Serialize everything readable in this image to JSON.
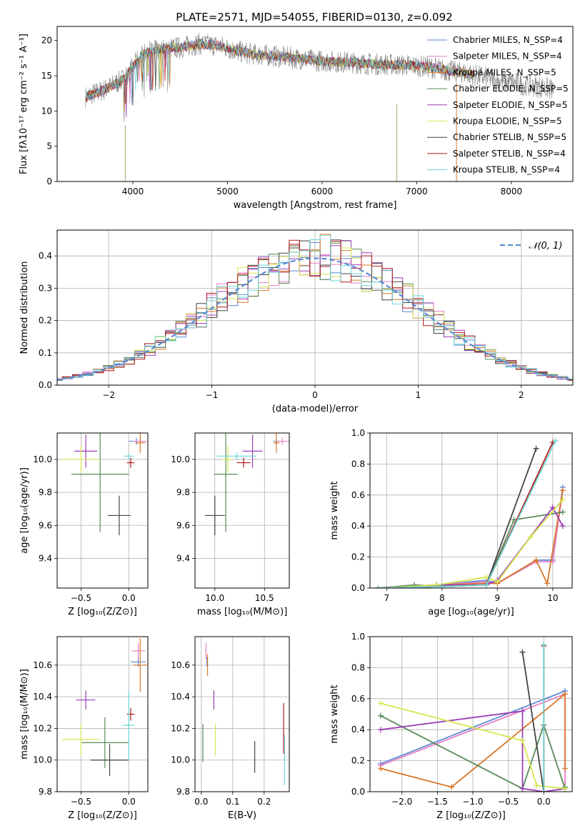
{
  "chart_data": [
    {
      "id": "spectrum",
      "type": "line",
      "title": "PLATE=2571, MJD=54055, FIBERID=0130, z=0.092",
      "xlabel": "wavelength [Angstrom, rest frame]",
      "ylabel": "Flux [fλ10⁻¹⁷ erg cm⁻² s⁻¹ A⁻¹]",
      "xlim": [
        3200,
        8650
      ],
      "ylim": [
        0,
        22
      ],
      "xticks": [
        4000,
        5000,
        6000,
        7000,
        8000
      ],
      "yticks": [
        0,
        5,
        10,
        15,
        20
      ],
      "grid": false,
      "legend_position": "top-right",
      "data_envelope": {
        "x": [
          3500,
          3700,
          3900,
          4100,
          4300,
          4500,
          4700,
          4900,
          5100,
          5300,
          5500,
          5700,
          5900,
          6100,
          6300,
          6500,
          6700,
          6900,
          7100,
          7300,
          7500,
          7700,
          7900,
          8100,
          8300,
          8450
        ],
        "y": [
          12.0,
          13.0,
          14.5,
          18.0,
          18.8,
          19.0,
          19.5,
          19.3,
          18.5,
          18.0,
          17.8,
          17.5,
          17.2,
          17.0,
          16.9,
          16.7,
          16.6,
          16.5,
          16.3,
          15.8,
          15.4,
          14.8,
          14.2,
          13.8,
          13.4,
          13.0
        ]
      },
      "series": [
        {
          "name": "Chabrier MILES, N_SSP=4",
          "color": "#5b8ad6"
        },
        {
          "name": "Salpeter MILES, N_SSP=4",
          "color": "#e87fc6"
        },
        {
          "name": "Kroupa MILES, N_SSP=5",
          "color": "#d9772a"
        },
        {
          "name": "Chabrier ELODIE, N_SSP=5",
          "color": "#5a8a5a"
        },
        {
          "name": "Salpeter ELODIE, N_SSP=5",
          "color": "#9b3fb5"
        },
        {
          "name": "Kroupa ELODIE, N_SSP=5",
          "color": "#d6e64e"
        },
        {
          "name": "Chabrier STELIB, N_SSP=5",
          "color": "#444444"
        },
        {
          "name": "Salpeter STELIB, N_SSP=4",
          "color": "#b01c1c"
        },
        {
          "name": "Kroupa STELIB, N_SSP=4",
          "color": "#6fd6d6"
        }
      ]
    },
    {
      "id": "residuals",
      "type": "bar",
      "xlabel": "(data-model)/error",
      "ylabel": "Normed distribution",
      "xlim": [
        -2.5,
        2.5
      ],
      "ylim": [
        0,
        0.48
      ],
      "xticks": [
        -2,
        -1,
        0,
        1,
        2
      ],
      "yticks": [
        0.0,
        0.1,
        0.2,
        0.3,
        0.4
      ],
      "grid": true,
      "legend_position": "top-right",
      "reference": {
        "name": "𝒩(0, 1)",
        "color": "#5b8ad6"
      },
      "bin_width": 0.1
    },
    {
      "id": "age_vs_Z",
      "type": "scatter",
      "xlabel": "Z [log₁₀(Z/Z⊙)]",
      "ylabel": "age  [log₁₀(age/yr)]",
      "xlim": [
        -0.75,
        0.2
      ],
      "ylim": [
        9.22,
        10.16
      ],
      "xticks": [
        -0.5,
        0.0
      ],
      "yticks": [
        9.4,
        9.6,
        9.8,
        10.0
      ],
      "grid": true,
      "points": [
        {
          "c": "#5b8ad6",
          "x": 0.08,
          "y": 10.11,
          "xe": 0.08,
          "ye": 0.02
        },
        {
          "c": "#e87fc6",
          "x": 0.12,
          "y": 10.11,
          "xe": 0.07,
          "ye": 0.02
        },
        {
          "c": "#d9772a",
          "x": 0.12,
          "y": 10.1,
          "xe": 0.05,
          "ye": 0.06
        },
        {
          "c": "#5a8a5a",
          "x": -0.3,
          "y": 9.91,
          "xe": 0.3,
          "ye": 0.35
        },
        {
          "c": "#9b3fb5",
          "x": -0.45,
          "y": 10.05,
          "xe": 0.12,
          "ye": 0.1
        },
        {
          "c": "#d6e64e",
          "x": -0.5,
          "y": 10.0,
          "xe": 0.2,
          "ye": 0.08
        },
        {
          "c": "#444444",
          "x": -0.1,
          "y": 9.66,
          "xe": 0.12,
          "ye": 0.12
        },
        {
          "c": "#b01c1c",
          "x": 0.02,
          "y": 9.98,
          "xe": 0.04,
          "ye": 0.03
        },
        {
          "c": "#6fd6d6",
          "x": 0.0,
          "y": 10.02,
          "xe": 0.05,
          "ye": 0.02
        }
      ]
    },
    {
      "id": "age_vs_mass",
      "type": "scatter",
      "xlabel": "mass [log₁₀(M/M⊙)]",
      "ylabel": "",
      "xlim": [
        9.8,
        10.75
      ],
      "ylim": [
        9.22,
        10.16
      ],
      "xticks": [
        10.0,
        10.5
      ],
      "yticks": [
        9.4,
        9.6,
        9.8,
        10.0
      ],
      "grid": true,
      "points": [
        {
          "c": "#5b8ad6",
          "x": 10.62,
          "y": 10.11,
          "xe": 0.03,
          "ye": 0.02
        },
        {
          "c": "#e87fc6",
          "x": 10.68,
          "y": 10.11,
          "xe": 0.07,
          "ye": 0.02
        },
        {
          "c": "#d9772a",
          "x": 10.62,
          "y": 10.1,
          "xe": 0.03,
          "ye": 0.06
        },
        {
          "c": "#5a8a5a",
          "x": 10.11,
          "y": 9.91,
          "xe": 0.12,
          "ye": 0.35
        },
        {
          "c": "#9b3fb5",
          "x": 10.38,
          "y": 10.05,
          "xe": 0.1,
          "ye": 0.1
        },
        {
          "c": "#d6e64e",
          "x": 10.13,
          "y": 10.0,
          "xe": 0.05,
          "ye": 0.08
        },
        {
          "c": "#444444",
          "x": 10.0,
          "y": 9.66,
          "xe": 0.1,
          "ye": 0.12
        },
        {
          "c": "#b01c1c",
          "x": 10.29,
          "y": 9.98,
          "xe": 0.07,
          "ye": 0.03
        },
        {
          "c": "#6fd6d6",
          "x": 10.22,
          "y": 10.02,
          "xe": 0.2,
          "ye": 0.02
        }
      ]
    },
    {
      "id": "weight_vs_age",
      "type": "line",
      "xlabel": "age  [log₁₀(age/yr)]",
      "ylabel": "mass weight",
      "xlim": [
        6.7,
        10.35
      ],
      "ylim": [
        0,
        1.0
      ],
      "xticks": [
        7,
        8,
        9,
        10
      ],
      "yticks": [
        0.0,
        0.2,
        0.4,
        0.6,
        0.8,
        1.0
      ],
      "grid": true,
      "series": [
        {
          "c": "#5b8ad6",
          "x": [
            6.85,
            7.9,
            8.8,
            9.0,
            9.7,
            10.0,
            10.18
          ],
          "y": [
            0.0,
            0.02,
            0.05,
            0.03,
            0.18,
            0.18,
            0.65
          ]
        },
        {
          "c": "#e87fc6",
          "x": [
            6.85,
            7.9,
            8.8,
            9.0,
            9.7,
            10.0,
            10.18
          ],
          "y": [
            0.0,
            0.02,
            0.04,
            0.03,
            0.17,
            0.17,
            0.63
          ]
        },
        {
          "c": "#d9772a",
          "x": [
            6.85,
            7.9,
            8.8,
            9.0,
            9.7,
            9.9,
            10.18
          ],
          "y": [
            0.0,
            0.02,
            0.03,
            0.03,
            0.18,
            0.03,
            0.63
          ]
        },
        {
          "c": "#5a8a5a",
          "x": [
            6.85,
            7.5,
            8.0,
            8.8,
            9.3,
            10.18
          ],
          "y": [
            0.0,
            0.02,
            0.01,
            0.02,
            0.44,
            0.49
          ]
        },
        {
          "c": "#9b3fb5",
          "x": [
            6.85,
            7.9,
            8.8,
            9.0,
            10.0,
            10.18
          ],
          "y": [
            0.0,
            0.02,
            0.02,
            0.05,
            0.52,
            0.4
          ]
        },
        {
          "c": "#d6e64e",
          "x": [
            6.85,
            7.9,
            8.8,
            9.0,
            9.6,
            10.18
          ],
          "y": [
            0.0,
            0.02,
            0.07,
            0.04,
            0.33,
            0.57
          ]
        },
        {
          "c": "#444444",
          "x": [
            6.85,
            8.0,
            8.8,
            9.7
          ],
          "y": [
            0.0,
            0.01,
            0.02,
            0.9
          ]
        },
        {
          "c": "#b01c1c",
          "x": [
            6.85,
            8.0,
            8.8,
            10.0
          ],
          "y": [
            0.0,
            0.01,
            0.02,
            0.94
          ]
        },
        {
          "c": "#6fd6d6",
          "x": [
            6.85,
            8.0,
            8.8,
            10.05
          ],
          "y": [
            0.0,
            0.01,
            0.02,
            0.95
          ]
        }
      ]
    },
    {
      "id": "mass_vs_Z",
      "type": "scatter",
      "xlabel": "Z [log₁₀(Z/Z⊙)]",
      "ylabel": "mass [log₁₀(M/M⊙)]",
      "xlim": [
        -0.75,
        0.2
      ],
      "ylim": [
        9.8,
        10.78
      ],
      "xticks": [
        -0.5,
        0.0
      ],
      "yticks": [
        9.8,
        10.0,
        10.2,
        10.4,
        10.6
      ],
      "grid": true,
      "points": [
        {
          "c": "#5b8ad6",
          "x": 0.1,
          "y": 10.62,
          "xe": 0.08,
          "ye": 0.03
        },
        {
          "c": "#e87fc6",
          "x": 0.1,
          "y": 10.69,
          "xe": 0.07,
          "ye": 0.05
        },
        {
          "c": "#d9772a",
          "x": 0.12,
          "y": 10.6,
          "xe": 0.07,
          "ye": 0.17
        },
        {
          "c": "#5a8a5a",
          "x": -0.25,
          "y": 10.11,
          "xe": 0.25,
          "ye": 0.16
        },
        {
          "c": "#9b3fb5",
          "x": -0.45,
          "y": 10.38,
          "xe": 0.1,
          "ye": 0.06
        },
        {
          "c": "#d6e64e",
          "x": -0.5,
          "y": 10.13,
          "xe": 0.2,
          "ye": 0.1
        },
        {
          "c": "#444444",
          "x": -0.2,
          "y": 10.0,
          "xe": 0.2,
          "ye": 0.1
        },
        {
          "c": "#b01c1c",
          "x": 0.02,
          "y": 10.29,
          "xe": 0.04,
          "ye": 0.04
        },
        {
          "c": "#6fd6d6",
          "x": 0.0,
          "y": 10.22,
          "xe": 0.06,
          "ye": 0.22
        }
      ]
    },
    {
      "id": "mass_vs_EBV",
      "type": "scatter",
      "xlabel": "E(B-V)",
      "ylabel": "",
      "xlim": [
        -0.02,
        0.28
      ],
      "ylim": [
        9.8,
        10.78
      ],
      "xticks": [
        0.0,
        0.1,
        0.2
      ],
      "yticks": [
        9.8,
        10.0,
        10.2,
        10.4,
        10.6
      ],
      "grid": true,
      "points": [
        {
          "c": "#5b8ad6",
          "x": 0.018,
          "y": 10.62,
          "xe": 0,
          "ye": 0.03
        },
        {
          "c": "#e87fc6",
          "x": 0.015,
          "y": 10.69,
          "xe": 0,
          "ye": 0.05
        },
        {
          "c": "#d9772a",
          "x": 0.02,
          "y": 10.6,
          "xe": 0,
          "ye": 0.07
        },
        {
          "c": "#5a8a5a",
          "x": 0.005,
          "y": 10.11,
          "xe": 0,
          "ye": 0.12
        },
        {
          "c": "#9b3fb5",
          "x": 0.04,
          "y": 10.38,
          "xe": 0,
          "ye": 0.06
        },
        {
          "c": "#d6e64e",
          "x": 0.045,
          "y": 10.13,
          "xe": 0,
          "ye": 0.1
        },
        {
          "c": "#444444",
          "x": 0.17,
          "y": 10.02,
          "xe": 0,
          "ye": 0.1
        },
        {
          "c": "#b01c1c",
          "x": 0.262,
          "y": 10.2,
          "xe": 0,
          "ye": 0.16
        },
        {
          "c": "#6fd6d6",
          "x": 0.265,
          "y": 10.0,
          "xe": 0,
          "ye": 0.16
        }
      ]
    },
    {
      "id": "weight_vs_Z",
      "type": "line",
      "xlabel": "Z [log₁₀(Z/Z⊙)]",
      "ylabel": "mass weight",
      "xlim": [
        -2.45,
        0.4
      ],
      "ylim": [
        0,
        1.0
      ],
      "xticks": [
        -2.0,
        -1.5,
        -1.0,
        -0.5,
        0.0
      ],
      "yticks": [
        0.0,
        0.2,
        0.4,
        0.6,
        0.8,
        1.0
      ],
      "grid": true,
      "series": [
        {
          "c": "#5b8ad6",
          "x": [
            -2.3,
            0.3
          ],
          "y": [
            0.18,
            0.65
          ]
        },
        {
          "c": "#e87fc6",
          "x": [
            -2.3,
            0.3,
            0.3
          ],
          "y": [
            0.17,
            0.63,
            0.03
          ]
        },
        {
          "c": "#d9772a",
          "x": [
            -2.3,
            -1.3,
            0.3,
            0.3
          ],
          "y": [
            0.15,
            0.03,
            0.63,
            0.15
          ]
        },
        {
          "c": "#5a8a5a",
          "x": [
            -2.3,
            -0.3,
            0.0,
            0.3,
            0.3
          ],
          "y": [
            0.49,
            0.02,
            0.43,
            0.02,
            0.03
          ]
        },
        {
          "c": "#9b3fb5",
          "x": [
            -2.3,
            -0.3,
            -0.3,
            0.0,
            0.3
          ],
          "y": [
            0.4,
            0.52,
            0.02,
            0.0,
            0.02
          ]
        },
        {
          "c": "#d6e64e",
          "x": [
            -2.3,
            -0.3,
            -0.1,
            0.3
          ],
          "y": [
            0.57,
            0.33,
            0.04,
            0.02
          ]
        },
        {
          "c": "#444444",
          "x": [
            -0.3,
            0.0
          ],
          "y": [
            0.9,
            0.0
          ]
        },
        {
          "c": "#b01c1c",
          "x": [
            0.0,
            0.0
          ],
          "y": [
            0.94,
            0.0
          ]
        },
        {
          "c": "#6fd6d6",
          "x": [
            0.0,
            0.0
          ],
          "y": [
            0.95,
            0.0
          ]
        }
      ]
    }
  ]
}
